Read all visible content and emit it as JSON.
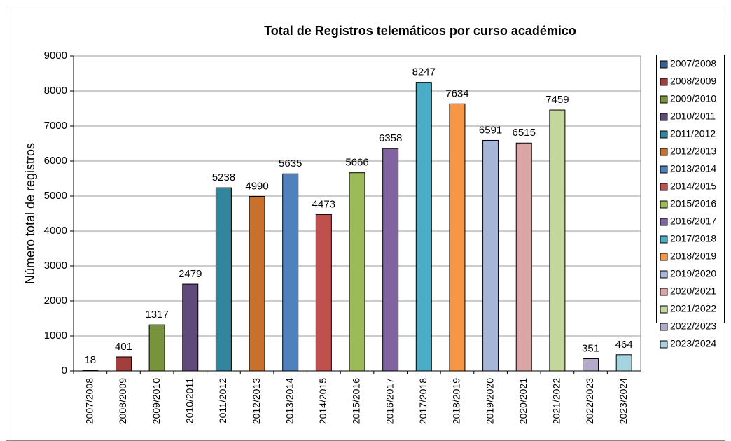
{
  "chart_data": {
    "type": "bar",
    "title": "Total de Registros telemáticos por curso académico",
    "y_label": "Número total de registros",
    "categories": [
      "2007/2008",
      "2008/2009",
      "2009/2010",
      "2010/2011",
      "2011/2012",
      "2012/2013",
      "2013/2014",
      "2014/2015",
      "2015/2016",
      "2016/2017",
      "2017/2018",
      "2018/2019",
      "2019/2020",
      "2020/2021",
      "2021/2022",
      "2022/2023",
      "2023/2024"
    ],
    "values": [
      18,
      401,
      1317,
      2479,
      5238,
      4990,
      5635,
      4473,
      5666,
      6358,
      8247,
      7634,
      6591,
      6515,
      7459,
      351,
      464
    ],
    "colors": [
      "#3a5f95",
      "#a23e3b",
      "#77933c",
      "#604a7b",
      "#31859c",
      "#c8712d",
      "#4f81bd",
      "#c0504d",
      "#9bbb59",
      "#8064a2",
      "#4bacc6",
      "#f79646",
      "#a7b5d8",
      "#d9a5a5",
      "#c3d69b",
      "#b3a9c9",
      "#a5d3e0"
    ],
    "ylim": [
      0,
      9000
    ],
    "yticks": [
      0,
      1000,
      2000,
      3000,
      4000,
      5000,
      6000,
      7000,
      8000,
      9000
    ],
    "grid": true,
    "legend": "right"
  }
}
